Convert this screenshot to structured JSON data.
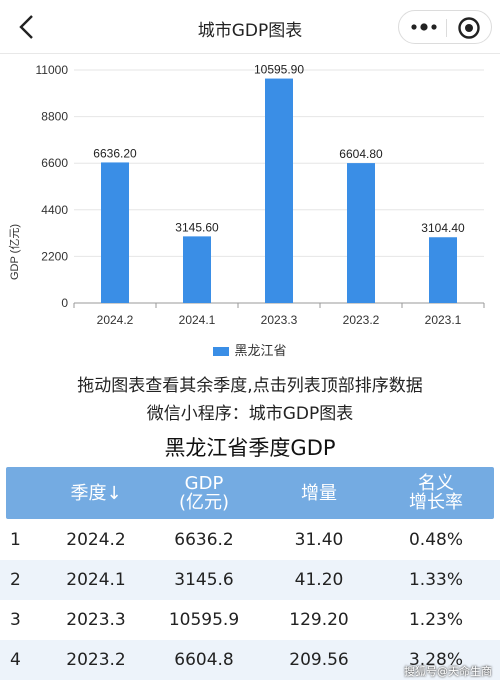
{
  "nav": {
    "title": "城市GDP图表"
  },
  "chart_data": {
    "type": "bar",
    "categories": [
      "2024.2",
      "2024.1",
      "2023.3",
      "2023.2",
      "2023.1"
    ],
    "values": [
      6636.2,
      3145.6,
      10595.9,
      6604.8,
      3104.4
    ],
    "value_labels": [
      "6636.20",
      "3145.60",
      "10595.90",
      "6604.80",
      "3104.40"
    ],
    "series": [
      {
        "name": "黑龙江省",
        "values": [
          6636.2,
          3145.6,
          10595.9,
          6604.8,
          3104.4
        ]
      }
    ],
    "ylabel": "GDP (亿元)",
    "yticks": [
      0,
      2200,
      4400,
      6600,
      8800,
      11000
    ],
    "ylim": [
      0,
      11000
    ],
    "bar_color": "#3a8ee6",
    "grid": true,
    "legend_position": "bottom-center"
  },
  "legend": {
    "label": "黑龙江省"
  },
  "hints": {
    "line1": "拖动图表查看其余季度,点击列表顶部排序数据",
    "line2": "微信小程序：城市GDP图表"
  },
  "table": {
    "title": "黑龙江省季度GDP",
    "headers": {
      "quarter": "季度↓",
      "gdp_line1": "GDP",
      "gdp_line2": "(亿元)",
      "increase": "增量",
      "rate_line1": "名义",
      "rate_line2": "增长率"
    },
    "rows": [
      {
        "idx": "1",
        "quarter": "2024.2",
        "gdp": "6636.2",
        "increase": "31.40",
        "rate": "0.48%"
      },
      {
        "idx": "2",
        "quarter": "2024.1",
        "gdp": "3145.6",
        "increase": "41.20",
        "rate": "1.33%"
      },
      {
        "idx": "3",
        "quarter": "2023.3",
        "gdp": "10595.9",
        "increase": "129.20",
        "rate": "1.23%"
      },
      {
        "idx": "4",
        "quarter": "2023.2",
        "gdp": "6604.8",
        "increase": "209.56",
        "rate": "3.28%"
      }
    ]
  },
  "watermark": "搜狐号@天命生商",
  "colors": {
    "header_bg": "#74abe2",
    "row_alt_bg": "#edf3fa",
    "bar": "#3a8ee6"
  }
}
